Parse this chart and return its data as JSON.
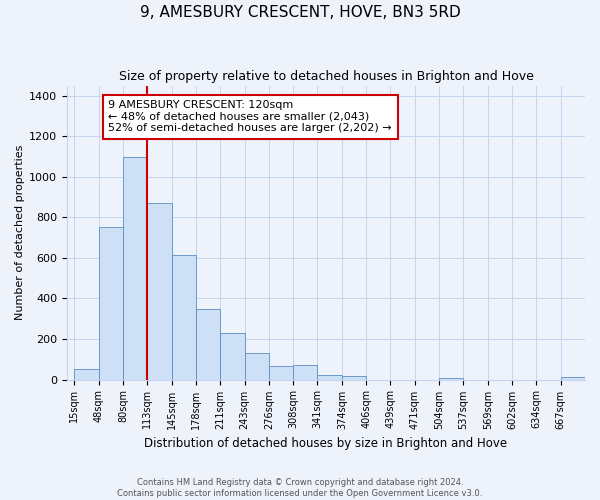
{
  "title": "9, AMESBURY CRESCENT, HOVE, BN3 5RD",
  "subtitle": "Size of property relative to detached houses in Brighton and Hove",
  "xlabel": "Distribution of detached houses by size in Brighton and Hove",
  "ylabel": "Number of detached properties",
  "footer_line1": "Contains HM Land Registry data © Crown copyright and database right 2024.",
  "footer_line2": "Contains public sector information licensed under the Open Government Licence v3.0.",
  "annotation_line1": "9 AMESBURY CRESCENT: 120sqm",
  "annotation_line2": "← 48% of detached houses are smaller (2,043)",
  "annotation_line3": "52% of semi-detached houses are larger (2,202) →",
  "bar_labels": [
    "15sqm",
    "48sqm",
    "80sqm",
    "113sqm",
    "145sqm",
    "178sqm",
    "211sqm",
    "243sqm",
    "276sqm",
    "308sqm",
    "341sqm",
    "374sqm",
    "406sqm",
    "439sqm",
    "471sqm",
    "504sqm",
    "537sqm",
    "569sqm",
    "602sqm",
    "634sqm",
    "667sqm"
  ],
  "bar_values": [
    50,
    750,
    1100,
    870,
    615,
    350,
    230,
    130,
    65,
    70,
    25,
    20,
    0,
    0,
    0,
    10,
    0,
    0,
    0,
    0,
    15
  ],
  "bar_color": "#cde0f5",
  "bar_edge_color": "#5b8ec5",
  "red_line_index": 3,
  "ylim": [
    0,
    1450
  ],
  "yticks": [
    0,
    200,
    400,
    600,
    800,
    1000,
    1200,
    1400
  ],
  "background_color": "#eef2fb",
  "grid_color": "#c5d5ee",
  "title_fontsize": 11,
  "subtitle_fontsize": 9,
  "annotation_box_color": "#ffffff",
  "annotation_box_edge": "#cc0000",
  "annotation_fontsize": 8
}
